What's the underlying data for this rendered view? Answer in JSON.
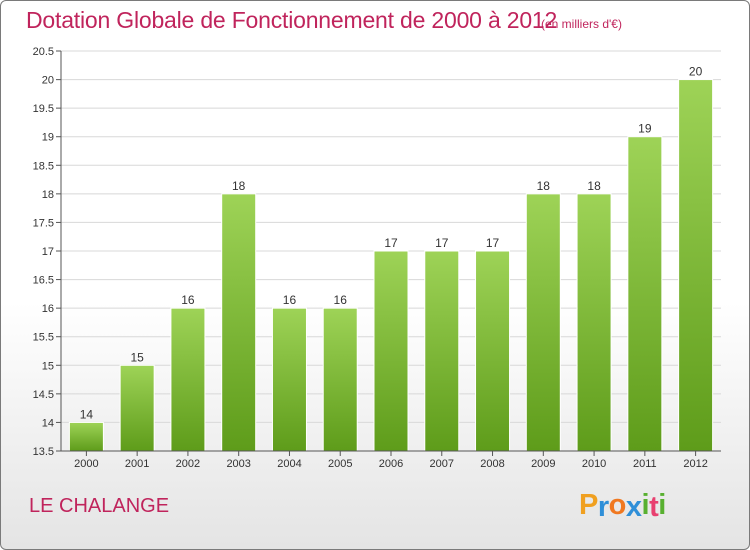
{
  "header": {
    "title": "Dotation Globale de Fonctionnement de 2000 à 2012",
    "unit": "(en milliers d'€)"
  },
  "footer": {
    "town": "LE CHALANGE",
    "logo": {
      "letters": [
        "P",
        "r",
        "o",
        "x",
        "i",
        "t",
        "i"
      ],
      "colors": [
        "#f0a020",
        "#2f8fd8",
        "#f07820",
        "#2f8fd8",
        "#58b030",
        "#e84070",
        "#58b030"
      ]
    }
  },
  "colors": {
    "bar_light": "#9ed357",
    "bar_dark": "#5e9c1a",
    "grid": "#d8d8d8",
    "axis": "#555555",
    "accent": "#c0245c"
  },
  "chart_data": {
    "type": "bar",
    "title": "Dotation Globale de Fonctionnement de 2000 à 2012",
    "subtitle": "(en milliers d'€)",
    "xlabel": "",
    "ylabel": "",
    "categories": [
      "2000",
      "2001",
      "2002",
      "2003",
      "2004",
      "2005",
      "2006",
      "2007",
      "2008",
      "2009",
      "2010",
      "2011",
      "2012"
    ],
    "values": [
      14,
      15,
      16,
      18,
      16,
      16,
      17,
      17,
      17,
      18,
      18,
      19,
      20
    ],
    "data_labels": [
      "14",
      "15",
      "16",
      "18",
      "16",
      "16",
      "17",
      "17",
      "17",
      "18",
      "18",
      "19",
      "20"
    ],
    "ylim": [
      13.5,
      20.5
    ],
    "yticks": [
      13.5,
      14,
      14.5,
      15,
      15.5,
      16,
      16.5,
      17,
      17.5,
      18,
      18.5,
      19,
      19.5,
      20,
      20.5
    ],
    "ytick_labels": [
      "13.5",
      "14",
      "14.5",
      "15",
      "15.5",
      "16",
      "16.5",
      "17",
      "17.5",
      "18",
      "18.5",
      "19",
      "19.5",
      "20",
      "20.5"
    ],
    "grid": true,
    "legend": "none"
  }
}
